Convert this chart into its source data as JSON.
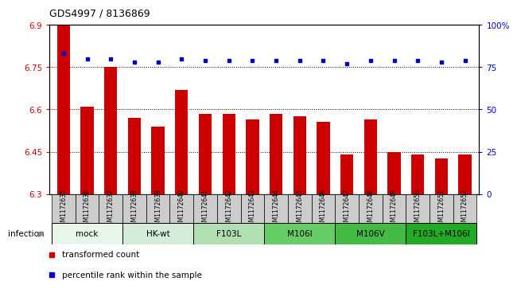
{
  "title": "GDS4997 / 8136869",
  "samples": [
    "GSM1172635",
    "GSM1172636",
    "GSM1172637",
    "GSM1172638",
    "GSM1172639",
    "GSM1172640",
    "GSM1172641",
    "GSM1172642",
    "GSM1172643",
    "GSM1172644",
    "GSM1172645",
    "GSM1172646",
    "GSM1172647",
    "GSM1172648",
    "GSM1172649",
    "GSM1172650",
    "GSM1172651",
    "GSM1172652"
  ],
  "bar_values": [
    6.9,
    6.61,
    6.75,
    6.57,
    6.54,
    6.67,
    6.585,
    6.585,
    6.565,
    6.585,
    6.575,
    6.555,
    6.44,
    6.565,
    6.45,
    6.44,
    6.425,
    6.44
  ],
  "percentile_values": [
    83,
    80,
    80,
    78,
    78,
    80,
    79,
    79,
    79,
    79,
    79,
    79,
    77,
    79,
    79,
    79,
    78,
    79
  ],
  "bar_color": "#cc0000",
  "dot_color": "#0000cc",
  "ylim_left": [
    6.3,
    6.9
  ],
  "ylim_right": [
    0,
    100
  ],
  "yticks_left": [
    6.3,
    6.45,
    6.6,
    6.75,
    6.9
  ],
  "yticks_right": [
    0,
    25,
    50,
    75,
    100
  ],
  "ytick_labels_left": [
    "6.3",
    "6.45",
    "6.6",
    "6.75",
    "6.9"
  ],
  "ytick_labels_right": [
    "0",
    "25",
    "50",
    "75",
    "100%"
  ],
  "groups": [
    {
      "label": "mock",
      "start": 0,
      "end": 3,
      "color": "#e8f5e9"
    },
    {
      "label": "HK-wt",
      "start": 3,
      "end": 6,
      "color": "#d4edda"
    },
    {
      "label": "F103L",
      "start": 6,
      "end": 9,
      "color": "#b2dfb2"
    },
    {
      "label": "M106I",
      "start": 9,
      "end": 12,
      "color": "#66cc66"
    },
    {
      "label": "M106V",
      "start": 12,
      "end": 15,
      "color": "#44bb44"
    },
    {
      "label": "F103L+M106I",
      "start": 15,
      "end": 18,
      "color": "#22aa22"
    }
  ],
  "infection_label": "infection",
  "legend_bar_label": "transformed count",
  "legend_dot_label": "percentile rank within the sample",
  "tick_color_left": "#cc0000",
  "tick_color_right": "#0000cc",
  "sample_box_color": "#cccccc",
  "sample_box_edge": "#999999"
}
